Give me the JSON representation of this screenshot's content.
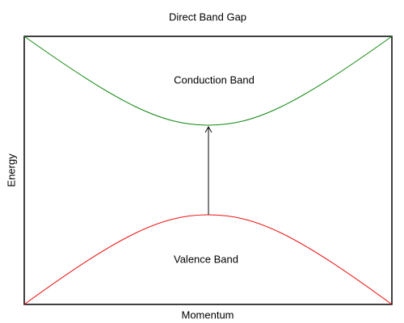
{
  "header": {
    "title": "Direct Band Gap"
  },
  "bands": {
    "conduction": {
      "label": "Conduction Band"
    },
    "valence": {
      "label": "Valence Band"
    }
  },
  "axes": {
    "x_label": "Momentum",
    "y_label": "Energy"
  }
}
